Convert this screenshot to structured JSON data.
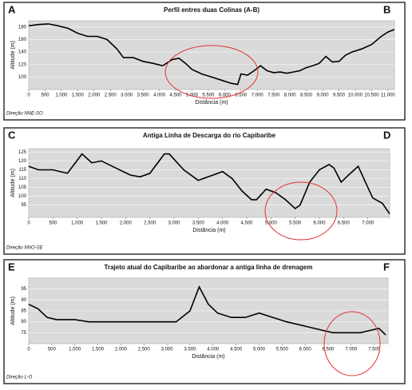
{
  "chart_data": [
    {
      "type": "line",
      "title": "Perfil entres duas Colinas (A-B)",
      "corner_labels": [
        "A",
        "B"
      ],
      "note": "Direção NNE-SO",
      "xlabel": "Distância (m)",
      "ylabel": "Altitude (m)",
      "color": "#000000",
      "grid": true,
      "x": [
        0,
        300,
        600,
        900,
        1200,
        1500,
        1800,
        2100,
        2400,
        2700,
        2900,
        3200,
        3500,
        3800,
        4100,
        4400,
        4600,
        4800,
        5000,
        5300,
        5600,
        5900,
        6200,
        6400,
        6500,
        6700,
        6900,
        7100,
        7300,
        7500,
        7700,
        7900,
        8100,
        8300,
        8500,
        8700,
        8900,
        9100,
        9300,
        9500,
        9700,
        9900,
        10200,
        10500,
        10800,
        11000,
        11200
      ],
      "values": [
        182,
        184,
        185,
        182,
        178,
        170,
        165,
        165,
        160,
        145,
        131,
        131,
        125,
        122,
        118,
        128,
        130,
        122,
        112,
        105,
        100,
        95,
        90,
        88,
        105,
        103,
        110,
        118,
        110,
        107,
        108,
        106,
        108,
        110,
        115,
        118,
        122,
        133,
        124,
        125,
        135,
        140,
        145,
        152,
        165,
        172,
        176
      ],
      "xlim": [
        0,
        11200
      ],
      "ylim": [
        80,
        190
      ],
      "xticks": [
        0,
        500,
        {
          "value": 1000,
          "label": "1.000"
        },
        {
          "value": 1500,
          "label": "1.500"
        },
        {
          "value": 2000,
          "label": "2.000"
        },
        {
          "value": 2500,
          "label": "2.500"
        },
        {
          "value": 3000,
          "label": "3.000"
        },
        {
          "value": 3500,
          "label": "3.500"
        },
        {
          "value": 4000,
          "label": "4.000"
        },
        {
          "value": 4500,
          "label": "4.500"
        },
        {
          "value": 5000,
          "label": "5.000"
        },
        {
          "value": 5500,
          "label": "5.500"
        },
        {
          "value": 6000,
          "label": "6.000"
        },
        {
          "value": 6500,
          "label": "6.500"
        },
        {
          "value": 7000,
          "label": "7.000"
        },
        {
          "value": 7500,
          "label": "7.500"
        },
        {
          "value": 8000,
          "label": "8.000"
        },
        {
          "value": 8500,
          "label": "8.500"
        },
        {
          "value": 9000,
          "label": "9.000"
        },
        {
          "value": 9500,
          "label": "9.500"
        },
        {
          "value": 10000,
          "label": "10.000"
        },
        {
          "value": 10500,
          "label": "10.500"
        },
        {
          "value": 11000,
          "label": "11.000"
        }
      ],
      "yticks": [
        100,
        120,
        140,
        160,
        180
      ]
    },
    {
      "type": "line",
      "title": "Antiga Linha de Descarga do rio Capibaribe",
      "corner_labels": [
        "C",
        "D"
      ],
      "note": "Direção NNO-SE",
      "xlabel": "Distância (m)",
      "ylabel": "Altitude (m)",
      "color": "#000000",
      "grid": true,
      "x": [
        0,
        200,
        500,
        800,
        1100,
        1300,
        1500,
        1800,
        2100,
        2300,
        2500,
        2800,
        2900,
        3200,
        3500,
        3800,
        4000,
        4200,
        4400,
        4600,
        4700,
        4900,
        5100,
        5300,
        5500,
        5600,
        5800,
        6000,
        6200,
        6300,
        6450,
        6600,
        6800,
        6950,
        7100,
        7300,
        7450
      ],
      "values": [
        117,
        115,
        115,
        113,
        124,
        119,
        120,
        116,
        112,
        111,
        113,
        124,
        124,
        115,
        109,
        112,
        114,
        110,
        103,
        98,
        98,
        104,
        102,
        98,
        93,
        95,
        108,
        115,
        118,
        116,
        108,
        112,
        117,
        108,
        99,
        96,
        90
      ],
      "xlim": [
        0,
        7450
      ],
      "ylim": [
        88,
        127
      ],
      "xticks": [
        0,
        500,
        {
          "value": 1000,
          "label": "1.000"
        },
        {
          "value": 1500,
          "label": "1.500"
        },
        {
          "value": 2000,
          "label": "2.000"
        },
        {
          "value": 2500,
          "label": "2.500"
        },
        {
          "value": 3000,
          "label": "3.000"
        },
        {
          "value": 3500,
          "label": "3.500"
        },
        {
          "value": 4000,
          "label": "4.000"
        },
        {
          "value": 4500,
          "label": "4.500"
        },
        {
          "value": 5000,
          "label": "5.000"
        },
        {
          "value": 5500,
          "label": "5.500"
        },
        {
          "value": 6000,
          "label": "6.000"
        },
        {
          "value": 6500,
          "label": "6.500"
        },
        {
          "value": 7000,
          "label": "7.000"
        }
      ],
      "yticks": [
        95,
        100,
        105,
        110,
        115,
        120,
        125
      ]
    },
    {
      "type": "line",
      "title": "Trajeto atual do Capibaribe ao abardonar a antiga linha de drenagem",
      "corner_labels": [
        "E",
        "F"
      ],
      "note": "Direção L-O",
      "xlabel": "Distância (m)",
      "ylabel": "Altitude (m)",
      "color": "#000000",
      "grid": true,
      "x": [
        0,
        200,
        400,
        600,
        1000,
        1300,
        1700,
        2000,
        2500,
        2800,
        3200,
        3500,
        3700,
        3900,
        4100,
        4400,
        4700,
        5000,
        5300,
        5600,
        6000,
        6400,
        6600,
        7000,
        7200,
        7400,
        7600,
        7750
      ],
      "values": [
        88,
        86,
        82,
        81,
        81,
        80,
        80,
        80,
        80,
        80,
        80,
        85,
        96,
        88,
        84,
        82,
        82,
        84,
        82,
        80,
        78,
        76,
        75,
        75,
        75,
        76,
        77,
        74
      ],
      "xlim": [
        0,
        7800
      ],
      "ylim": [
        70,
        100
      ],
      "xticks": [
        0,
        500,
        {
          "value": 1000,
          "label": "1.000"
        },
        {
          "value": 1500,
          "label": "1.500"
        },
        {
          "value": 2000,
          "label": "2.000"
        },
        {
          "value": 2500,
          "label": "2.500"
        },
        {
          "value": 3000,
          "label": "3.000"
        },
        {
          "value": 3500,
          "label": "3.500"
        },
        {
          "value": 4000,
          "label": "4.000"
        },
        {
          "value": 4500,
          "label": "4.500"
        },
        {
          "value": 5000,
          "label": "5.000"
        },
        {
          "value": 5500,
          "label": "5.500"
        },
        {
          "value": 6000,
          "label": "6.000"
        },
        {
          "value": 6500,
          "label": "6.500"
        },
        {
          "value": 7000,
          "label": "7.000"
        },
        {
          "value": 7500,
          "label": "7.500"
        }
      ],
      "yticks": [
        75,
        80,
        85,
        90,
        95
      ]
    }
  ]
}
